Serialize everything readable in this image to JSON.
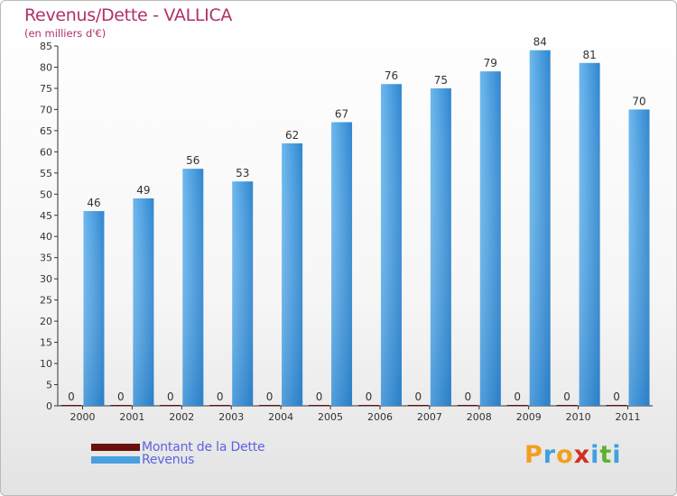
{
  "title": "Revenus/Dette - VALLICA",
  "subtitle": "(en milliers d'€)",
  "colors": {
    "title": "#b0306a",
    "debt": "#6b0f0f",
    "revenue": "#4a9fe0",
    "legend_text": "#5b63e0"
  },
  "legend": [
    {
      "label": "Montant de la Dette",
      "color": "#6b0f0f"
    },
    {
      "label": "Revenus",
      "color": "#4a9fe0"
    }
  ],
  "logo": {
    "letters": [
      "P",
      "r",
      "o",
      "x",
      "i",
      "t",
      "i"
    ],
    "colors": [
      "#f0a020",
      "#3fa0e0",
      "#f0a020",
      "#d03020",
      "#3fa0e0",
      "#60b030",
      "#3fa0e0"
    ]
  },
  "chart_data": {
    "type": "bar",
    "categories": [
      "2000",
      "2001",
      "2002",
      "2003",
      "2004",
      "2005",
      "2006",
      "2007",
      "2008",
      "2009",
      "2010",
      "2011"
    ],
    "series": [
      {
        "name": "Montant de la Dette",
        "values": [
          0,
          0,
          0,
          0,
          0,
          0,
          0,
          0,
          0,
          0,
          0,
          0
        ]
      },
      {
        "name": "Revenus",
        "values": [
          46,
          49,
          56,
          53,
          62,
          67,
          76,
          75,
          79,
          84,
          81,
          70
        ]
      }
    ],
    "ylim": [
      0,
      85
    ],
    "yticks": [
      0,
      5,
      10,
      15,
      20,
      25,
      30,
      35,
      40,
      45,
      50,
      55,
      60,
      65,
      70,
      75,
      80,
      85
    ],
    "grid": false,
    "legend_position": "bottom-left",
    "xlabel": "",
    "ylabel": ""
  }
}
